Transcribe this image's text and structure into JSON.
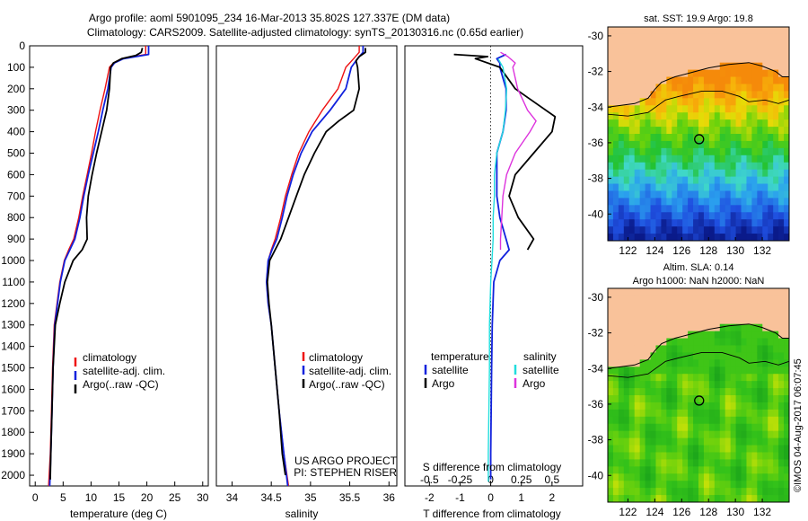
{
  "header": {
    "line1": "Argo profile: aoml 5901095_234 16-Mar-2013 35.802S 127.337E (DM data)",
    "line2": "Climatology: CARS2009. Satellite-adjusted climatology: synTS_20130316.nc (0.65d earlier)"
  },
  "colors": {
    "climatology": "#ee1111",
    "satellite": "#1122dd",
    "argo": "#000000",
    "sal_satellite": "#22dddd",
    "sal_argo": "#dd33dd",
    "land": "#f9c29a"
  },
  "chart_data": [
    {
      "type": "line",
      "id": "temperature",
      "xlabel": "temperature (deg C)",
      "ylabel": "",
      "xlim": [
        -1,
        31
      ],
      "ylim": [
        2050,
        0
      ],
      "xticks": [
        "0",
        "5",
        "10",
        "15",
        "20",
        "25",
        "30"
      ],
      "yticks": [
        "0",
        "100",
        "200",
        "300",
        "400",
        "500",
        "600",
        "700",
        "800",
        "900",
        "1000",
        "1100",
        "1200",
        "1300",
        "1400",
        "1500",
        "1600",
        "1700",
        "1800",
        "1900",
        "2000"
      ],
      "legend": [
        "climatology",
        "satellite-adj. clim.",
        "Argo(..raw -QC)"
      ],
      "series": [
        {
          "name": "climatology",
          "points": [
            [
              19.8,
              0
            ],
            [
              19.8,
              40
            ],
            [
              15.5,
              60
            ],
            [
              14.0,
              80
            ],
            [
              13.3,
              100
            ],
            [
              12.5,
              200
            ],
            [
              11.6,
              300
            ],
            [
              10.8,
              400
            ],
            [
              10.1,
              500
            ],
            [
              9.3,
              600
            ],
            [
              8.5,
              700
            ],
            [
              7.8,
              800
            ],
            [
              6.9,
              900
            ],
            [
              6.0,
              950
            ],
            [
              5.2,
              1000
            ],
            [
              4.4,
              1100
            ],
            [
              3.9,
              1200
            ],
            [
              3.4,
              1300
            ],
            [
              3.1,
              1500
            ],
            [
              2.9,
              1700
            ],
            [
              2.7,
              1900
            ],
            [
              2.4,
              2050
            ]
          ]
        },
        {
          "name": "satellite-adj. clim.",
          "points": [
            [
              20.3,
              0
            ],
            [
              20.3,
              40
            ],
            [
              15.8,
              60
            ],
            [
              14.2,
              80
            ],
            [
              13.6,
              100
            ],
            [
              13.0,
              200
            ],
            [
              12.1,
              300
            ],
            [
              11.3,
              400
            ],
            [
              10.4,
              500
            ],
            [
              9.5,
              600
            ],
            [
              8.7,
              700
            ],
            [
              8.0,
              800
            ],
            [
              7.1,
              900
            ],
            [
              6.2,
              950
            ],
            [
              5.3,
              1000
            ],
            [
              4.5,
              1100
            ],
            [
              4.0,
              1200
            ],
            [
              3.5,
              1300
            ],
            [
              3.2,
              1500
            ],
            [
              3.0,
              1700
            ],
            [
              2.8,
              1900
            ],
            [
              2.6,
              2050
            ]
          ]
        },
        {
          "name": "Argo(..raw -QC)",
          "points": [
            [
              19.2,
              10
            ],
            [
              19.0,
              30
            ],
            [
              18.0,
              45
            ],
            [
              15.5,
              60
            ],
            [
              14.0,
              80
            ],
            [
              13.5,
              100
            ],
            [
              13.3,
              200
            ],
            [
              12.8,
              300
            ],
            [
              11.9,
              400
            ],
            [
              11.0,
              500
            ],
            [
              10.2,
              600
            ],
            [
              9.5,
              700
            ],
            [
              9.2,
              800
            ],
            [
              9.3,
              900
            ],
            [
              8.4,
              950
            ],
            [
              6.8,
              1000
            ],
            [
              5.3,
              1100
            ],
            [
              4.4,
              1200
            ],
            [
              3.6,
              1300
            ],
            [
              3.2,
              1500
            ],
            [
              3.0,
              1700
            ],
            [
              2.8,
              1900
            ],
            [
              2.7,
              2020
            ]
          ]
        }
      ]
    },
    {
      "type": "line",
      "id": "salinity",
      "xlabel": "salinity",
      "xlim": [
        33.8,
        36.1
      ],
      "ylim": [
        2050,
        0
      ],
      "xticks": [
        "34",
        "34.5",
        "35",
        "35.5",
        "36"
      ],
      "legend": [
        "climatology",
        "satellite-adj. clim.",
        "Argo(..raw -QC)"
      ],
      "annotation": [
        "US ARGO PROJECT",
        "PI: STEPHEN RISER"
      ],
      "series": [
        {
          "name": "climatology",
          "points": [
            [
              35.62,
              0
            ],
            [
              35.62,
              30
            ],
            [
              35.55,
              60
            ],
            [
              35.45,
              100
            ],
            [
              35.35,
              200
            ],
            [
              35.15,
              300
            ],
            [
              34.98,
              400
            ],
            [
              34.85,
              500
            ],
            [
              34.76,
              600
            ],
            [
              34.68,
              700
            ],
            [
              34.62,
              800
            ],
            [
              34.55,
              900
            ],
            [
              34.5,
              950
            ],
            [
              34.46,
              1000
            ],
            [
              34.44,
              1100
            ],
            [
              34.46,
              1200
            ],
            [
              34.5,
              1300
            ],
            [
              34.55,
              1500
            ],
            [
              34.6,
              1700
            ],
            [
              34.66,
              1900
            ],
            [
              34.72,
              2050
            ]
          ]
        },
        {
          "name": "satellite-adj. clim.",
          "points": [
            [
              35.67,
              0
            ],
            [
              35.67,
              30
            ],
            [
              35.6,
              60
            ],
            [
              35.52,
              100
            ],
            [
              35.45,
              200
            ],
            [
              35.25,
              300
            ],
            [
              35.02,
              400
            ],
            [
              34.88,
              500
            ],
            [
              34.78,
              600
            ],
            [
              34.7,
              700
            ],
            [
              34.64,
              800
            ],
            [
              34.57,
              900
            ],
            [
              34.51,
              950
            ],
            [
              34.46,
              1000
            ],
            [
              34.44,
              1100
            ],
            [
              34.46,
              1200
            ],
            [
              34.5,
              1300
            ],
            [
              34.55,
              1500
            ],
            [
              34.6,
              1700
            ],
            [
              34.66,
              1900
            ],
            [
              34.71,
              2050
            ]
          ]
        },
        {
          "name": "Argo(..raw -QC)",
          "points": [
            [
              35.7,
              10
            ],
            [
              35.7,
              30
            ],
            [
              35.62,
              50
            ],
            [
              35.58,
              70
            ],
            [
              35.6,
              100
            ],
            [
              35.62,
              200
            ],
            [
              35.55,
              300
            ],
            [
              35.36,
              350
            ],
            [
              35.2,
              400
            ],
            [
              35.05,
              500
            ],
            [
              34.92,
              600
            ],
            [
              34.82,
              700
            ],
            [
              34.72,
              800
            ],
            [
              34.62,
              900
            ],
            [
              34.55,
              950
            ],
            [
              34.48,
              1000
            ],
            [
              34.45,
              1100
            ],
            [
              34.47,
              1200
            ],
            [
              34.5,
              1300
            ],
            [
              34.55,
              1500
            ],
            [
              34.6,
              1700
            ],
            [
              34.64,
              1900
            ],
            [
              34.68,
              2000
            ]
          ]
        }
      ]
    },
    {
      "type": "line",
      "id": "difference",
      "xlabel": "T difference from climatology",
      "xlabel_top": "S difference from climatology",
      "xlim": [
        -2.8,
        3.0
      ],
      "ylim": [
        2050,
        0
      ],
      "xticks": [
        "-2",
        "-1",
        "0",
        "1",
        "2"
      ],
      "xticks_top": [
        "-0.5",
        "-0.25",
        "0",
        "0.25",
        "0.5"
      ],
      "legend_temperature": [
        "temperature",
        "satellite",
        "Argo"
      ],
      "legend_salinity": [
        "salinity",
        "satellite",
        "Argo"
      ],
      "series": [
        {
          "name": "T satellite",
          "points": [
            [
              0.5,
              40
            ],
            [
              0.2,
              60
            ],
            [
              0.3,
              80
            ],
            [
              0.3,
              100
            ],
            [
              0.4,
              150
            ],
            [
              0.5,
              200
            ],
            [
              0.5,
              300
            ],
            [
              0.4,
              400
            ],
            [
              0.2,
              500
            ],
            [
              0.2,
              600
            ],
            [
              0.2,
              700
            ],
            [
              0.3,
              800
            ],
            [
              0.5,
              900
            ],
            [
              0.6,
              950
            ],
            [
              0.3,
              1000
            ],
            [
              0.1,
              1100
            ],
            [
              0.05,
              1300
            ],
            [
              0.03,
              1500
            ],
            [
              0.0,
              1900
            ],
            [
              0.0,
              2020
            ]
          ]
        },
        {
          "name": "T Argo",
          "points": [
            [
              -1.2,
              40
            ],
            [
              -0.1,
              50
            ],
            [
              -0.3,
              55
            ],
            [
              -0.5,
              60
            ],
            [
              0.3,
              100
            ],
            [
              0.8,
              200
            ],
            [
              1.3,
              250
            ],
            [
              2.1,
              330
            ],
            [
              2.0,
              400
            ],
            [
              1.4,
              500
            ],
            [
              0.8,
              600
            ],
            [
              0.6,
              700
            ],
            [
              0.9,
              800
            ],
            [
              1.4,
              900
            ],
            [
              1.2,
              950
            ]
          ]
        },
        {
          "name": "S satellite",
          "points": [
            [
              0.06,
              60
            ],
            [
              0.1,
              100
            ],
            [
              0.13,
              200
            ],
            [
              0.12,
              300
            ],
            [
              0.1,
              400
            ],
            [
              0.05,
              500
            ],
            [
              0.03,
              600
            ],
            [
              0.03,
              700
            ],
            [
              0.02,
              800
            ],
            [
              0.02,
              900
            ],
            [
              0.01,
              1000
            ],
            [
              0.0,
              1100
            ],
            [
              -0.01,
              1300
            ],
            [
              -0.01,
              1500
            ],
            [
              -0.02,
              1900
            ],
            [
              -0.02,
              2030
            ]
          ]
        },
        {
          "name": "S Argo",
          "points": [
            [
              0.08,
              30
            ],
            [
              0.14,
              50
            ],
            [
              0.2,
              80
            ],
            [
              0.18,
              100
            ],
            [
              0.22,
              200
            ],
            [
              0.3,
              300
            ],
            [
              0.37,
              350
            ],
            [
              0.32,
              400
            ],
            [
              0.2,
              500
            ],
            [
              0.13,
              600
            ],
            [
              0.1,
              700
            ],
            [
              0.09,
              800
            ],
            [
              0.08,
              900
            ],
            [
              0.08,
              950
            ]
          ]
        }
      ]
    },
    {
      "type": "heatmap",
      "id": "sst_map",
      "title": "sat. SST: 19.9 Argo: 19.8",
      "xticks": [
        "122",
        "124",
        "126",
        "128",
        "130",
        "132"
      ],
      "yticks": [
        "-30",
        "-32",
        "-34",
        "-36",
        "-38",
        "-40"
      ],
      "xlim": [
        120.5,
        134.0
      ],
      "ylim": [
        -41.5,
        -29.5
      ],
      "marker": {
        "lon": 127.3,
        "lat": -35.8
      },
      "coast": [
        [
          120.5,
          -34.0
        ],
        [
          121.5,
          -33.9
        ],
        [
          122.5,
          -33.8
        ],
        [
          123.5,
          -33.5
        ],
        [
          124.0,
          -33.0
        ],
        [
          124.5,
          -32.6
        ],
        [
          125.5,
          -32.3
        ],
        [
          126.5,
          -32.1
        ],
        [
          128.0,
          -31.8
        ],
        [
          129.5,
          -31.6
        ],
        [
          131.0,
          -31.5
        ],
        [
          132.0,
          -31.7
        ],
        [
          133.0,
          -32.0
        ],
        [
          133.5,
          -32.3
        ],
        [
          134.0,
          -32.3
        ]
      ],
      "shelf": [
        [
          120.5,
          -34.4
        ],
        [
          122.0,
          -34.5
        ],
        [
          123.5,
          -34.3
        ],
        [
          124.8,
          -33.6
        ],
        [
          125.8,
          -33.4
        ],
        [
          127.5,
          -33.1
        ],
        [
          129.0,
          -33.1
        ],
        [
          130.3,
          -33.4
        ],
        [
          131.0,
          -33.7
        ],
        [
          132.2,
          -33.6
        ],
        [
          133.2,
          -33.8
        ],
        [
          134.0,
          -33.6
        ]
      ],
      "colorscale": "sst"
    },
    {
      "type": "heatmap",
      "id": "sla_map",
      "title1": "Altim. SLA: 0.14",
      "title2": "Argo h1000: NaN h2000: NaN",
      "xticks": [
        "122",
        "124",
        "126",
        "128",
        "130",
        "132"
      ],
      "yticks": [
        "-30",
        "-32",
        "-34",
        "-36",
        "-38",
        "-40"
      ],
      "xlim": [
        120.5,
        134.0
      ],
      "ylim": [
        -41.5,
        -29.5
      ],
      "marker": {
        "lon": 127.3,
        "lat": -35.8
      },
      "colorscale": "sla"
    }
  ],
  "footer": {
    "credit": "©IMOS 04-Aug-2017 06:07:45"
  }
}
